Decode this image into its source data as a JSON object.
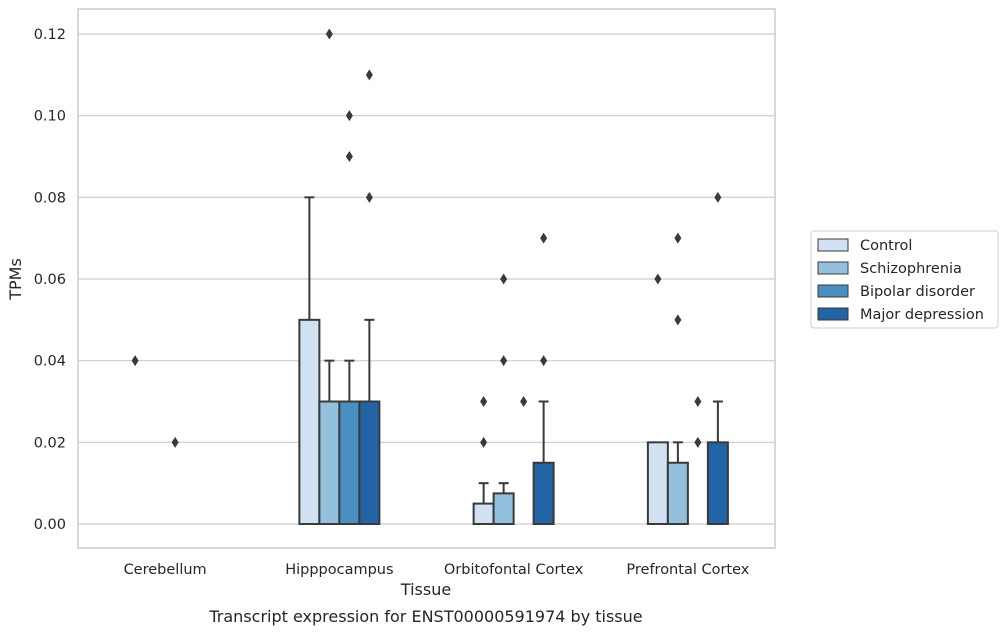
{
  "chart_data": {
    "type": "bar",
    "title": "",
    "caption": "Transcript expression for ENST00000591974 by tissue",
    "xlabel": "Tissue",
    "ylabel": "TPMs",
    "categories": [
      "Cerebellum",
      "Hipppocampus",
      "Orbitofontal Cortex",
      "Prefrontal Cortex"
    ],
    "ylim": [
      -0.006,
      0.126
    ],
    "yticks": [
      0.0,
      0.02,
      0.04,
      0.06,
      0.08,
      0.1,
      0.12
    ],
    "ytick_labels": [
      "0.00",
      "0.02",
      "0.04",
      "0.06",
      "0.08",
      "0.10",
      "0.12"
    ],
    "grid": "horizontal",
    "legend_position": "right",
    "series": [
      {
        "name": "Control",
        "color": "#d0e1f1",
        "values": [
          0.0,
          0.05,
          0.005,
          0.02
        ],
        "whisker_high": [
          0.0,
          0.08,
          0.01,
          0.02
        ],
        "outliers": [
          [
            0.04
          ],
          [],
          [
            0.02,
            0.03
          ],
          [
            0.06
          ]
        ]
      },
      {
        "name": "Schizophrenia",
        "color": "#93c0dc",
        "values": [
          0.0,
          0.03,
          0.0075,
          0.015
        ],
        "whisker_high": [
          0.0,
          0.04,
          0.01,
          0.02
        ],
        "outliers": [
          [],
          [
            0.12
          ],
          [
            0.04,
            0.06
          ],
          [
            0.05,
            0.07
          ]
        ]
      },
      {
        "name": "Bipolar disorder",
        "color": "#4a90c2",
        "values": [
          0.0,
          0.03,
          0.0,
          0.0
        ],
        "whisker_high": [
          0.0,
          0.04,
          0.0,
          0.0
        ],
        "outliers": [
          [
            0.02
          ],
          [
            0.09,
            0.1
          ],
          [
            0.03
          ],
          [
            0.02,
            0.03
          ]
        ]
      },
      {
        "name": "Major depression",
        "color": "#2165a6",
        "values": [
          0.0,
          0.03,
          0.015,
          0.02
        ],
        "whisker_high": [
          0.0,
          0.05,
          0.03,
          0.03
        ],
        "outliers": [
          [],
          [
            0.08,
            0.11
          ],
          [
            0.04,
            0.07
          ],
          [
            0.08
          ]
        ]
      }
    ]
  }
}
